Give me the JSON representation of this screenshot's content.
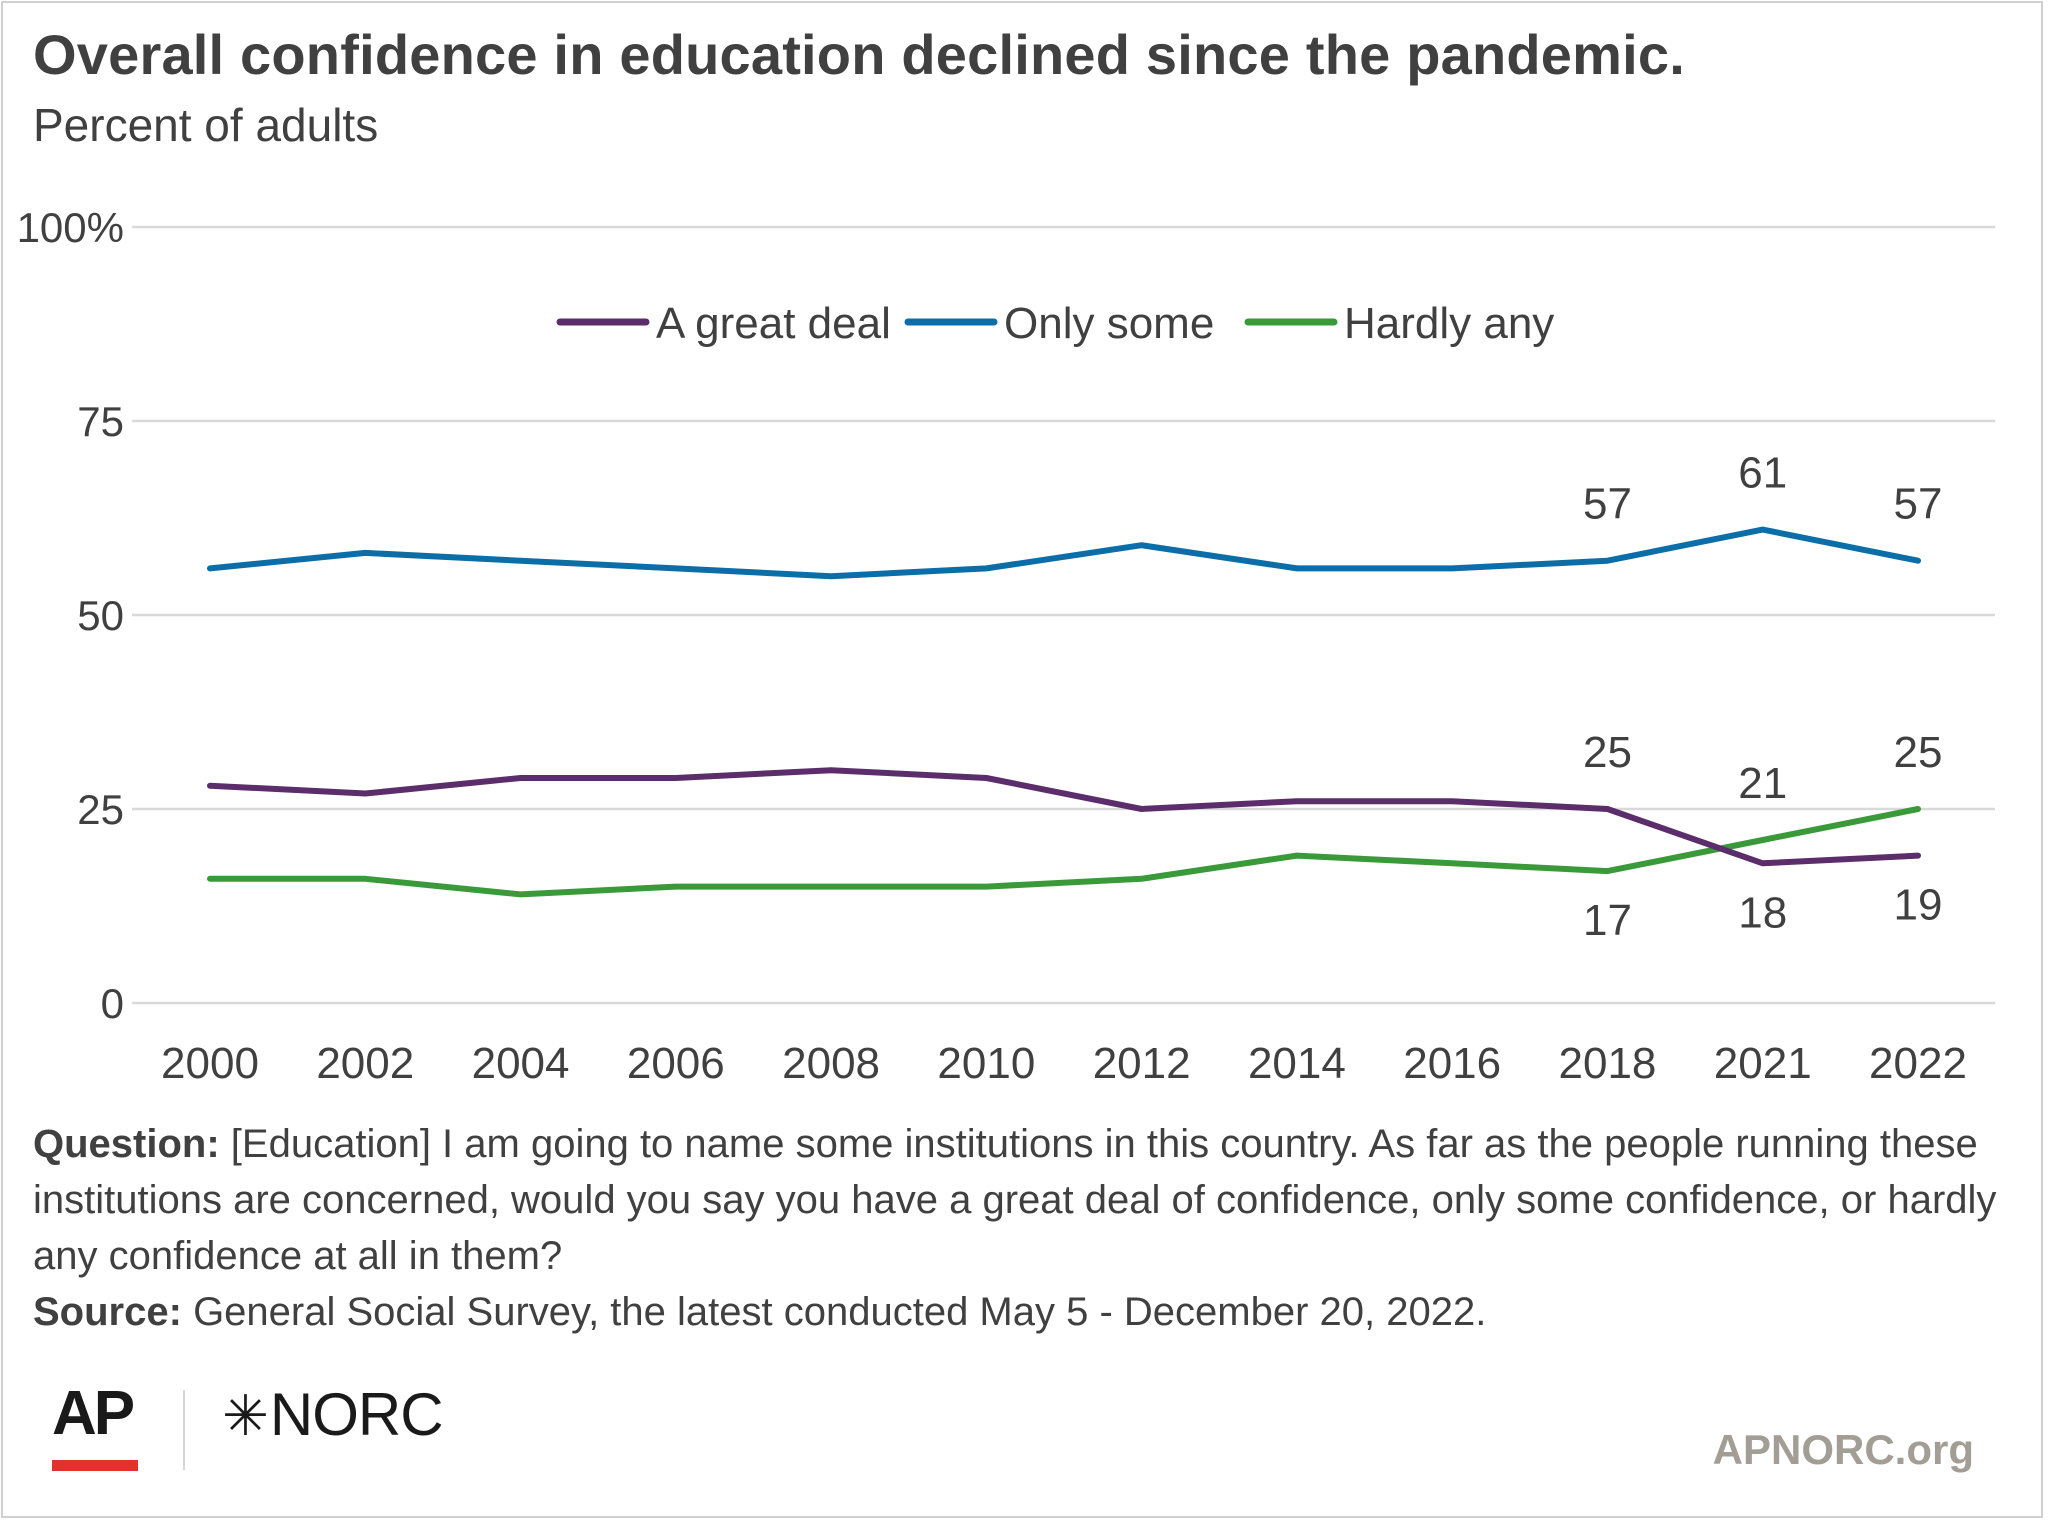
{
  "title": "Overall confidence in education declined since the pandemic.",
  "subtitle": "Percent of adults",
  "chart_data": {
    "type": "line",
    "x": [
      "2000",
      "2002",
      "2004",
      "2006",
      "2008",
      "2010",
      "2012",
      "2014",
      "2016",
      "2018",
      "2021",
      "2022"
    ],
    "ylim": [
      0,
      100
    ],
    "yticks": [
      "0",
      "25",
      "50",
      "75",
      "100%"
    ],
    "grid": true,
    "legend_position": "top-center",
    "series": [
      {
        "name": "A great deal",
        "color": "#5b2d6b",
        "values": [
          28,
          27,
          29,
          29,
          30,
          29,
          25,
          26,
          26,
          25,
          18,
          19
        ]
      },
      {
        "name": "Only some",
        "color": "#0b6ea8",
        "values": [
          56,
          58,
          57,
          56,
          55,
          56,
          59,
          56,
          56,
          57,
          61,
          57
        ]
      },
      {
        "name": "Hardly any",
        "color": "#3a9a3a",
        "values": [
          16,
          16,
          14,
          15,
          15,
          15,
          16,
          19,
          18,
          17,
          21,
          25
        ]
      }
    ],
    "data_labels": [
      {
        "series": 1,
        "index": 9,
        "text": "57",
        "pos": "above"
      },
      {
        "series": 1,
        "index": 10,
        "text": "61",
        "pos": "above"
      },
      {
        "series": 1,
        "index": 11,
        "text": "57",
        "pos": "above"
      },
      {
        "series": 0,
        "index": 9,
        "text": "25",
        "pos": "above"
      },
      {
        "series": 2,
        "index": 10,
        "text": "21",
        "pos": "above"
      },
      {
        "series": 2,
        "index": 11,
        "text": "25",
        "pos": "above"
      },
      {
        "series": 2,
        "index": 9,
        "text": "17",
        "pos": "below"
      },
      {
        "series": 0,
        "index": 10,
        "text": "18",
        "pos": "below"
      },
      {
        "series": 0,
        "index": 11,
        "text": "19",
        "pos": "below"
      }
    ]
  },
  "notes": {
    "question_label": "Question:",
    "question_text": "[Education] I am going to name some institutions in this country. As far as the people running these institutions are concerned, would you say you have a great deal of confidence, only some confidence, or hardly any confidence at all in them?",
    "source_label": "Source:",
    "source_text": "General Social Survey, the latest conducted May 5 - December 20, 2022."
  },
  "logos": {
    "ap": "AP",
    "norc": "NORC",
    "site": "APNORC.org"
  }
}
